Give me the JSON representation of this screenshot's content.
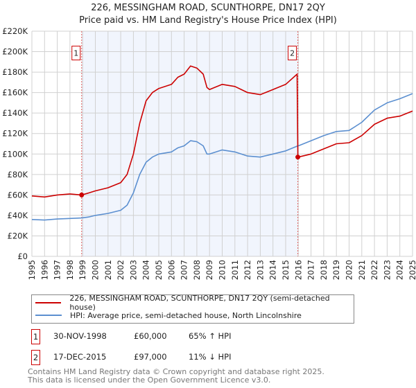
{
  "chart_data": {
    "type": "line",
    "title": "226, MESSINGHAM ROAD, SCUNTHORPE, DN17 2QY",
    "subtitle": "Price paid vs. HM Land Registry's House Price Index (HPI)",
    "xlim": [
      1995,
      2025
    ],
    "ylim": [
      0,
      220000
    ],
    "x_ticks": [
      "1995",
      "1996",
      "1997",
      "1998",
      "1999",
      "2000",
      "2001",
      "2002",
      "2003",
      "2004",
      "2005",
      "2006",
      "2007",
      "2008",
      "2009",
      "2010",
      "2011",
      "2012",
      "2013",
      "2014",
      "2015",
      "2016",
      "2017",
      "2018",
      "2019",
      "2020",
      "2021",
      "2022",
      "2023",
      "2024",
      "2025"
    ],
    "y_ticks": [
      "£0",
      "£20K",
      "£40K",
      "£60K",
      "£80K",
      "£100K",
      "£120K",
      "£140K",
      "£160K",
      "£180K",
      "£200K",
      "£220K"
    ],
    "grid": true,
    "series": [
      {
        "name": "226, MESSINGHAM ROAD, SCUNTHORPE, DN17 2QY (semi-detached house)",
        "color": "#cc0000",
        "x": [
          1995,
          1996,
          1997,
          1998,
          1998.92,
          1999.5,
          2000,
          2001,
          2002,
          2002.5,
          2003,
          2003.5,
          2004,
          2004.5,
          2005,
          2006,
          2006.5,
          2007,
          2007.5,
          2008,
          2008.5,
          2008.8,
          2009,
          2010,
          2011,
          2012,
          2013,
          2014,
          2015,
          2015.9,
          2015.96,
          2016,
          2017,
          2018,
          2019,
          2020,
          2021,
          2022,
          2023,
          2024,
          2025
        ],
        "y": [
          59000,
          58000,
          60000,
          61000,
          60000,
          62000,
          64000,
          67000,
          72000,
          80000,
          100000,
          130000,
          152000,
          160000,
          164000,
          168000,
          175000,
          178000,
          186000,
          184000,
          178000,
          165000,
          163000,
          168000,
          166000,
          160000,
          158000,
          163000,
          168000,
          178000,
          97000,
          97000,
          100000,
          105000,
          110000,
          111000,
          118000,
          129000,
          135000,
          137000,
          142000
        ]
      },
      {
        "name": "HPI: Average price, semi-detached house, North Lincolnshire",
        "color": "#5b8fd0",
        "x": [
          1995,
          1996,
          1997,
          1998,
          1998.92,
          1999.5,
          2000,
          2001,
          2002,
          2002.5,
          2003,
          2003.5,
          2004,
          2004.5,
          2005,
          2006,
          2006.5,
          2007,
          2007.5,
          2008,
          2008.5,
          2008.8,
          2009,
          2010,
          2011,
          2012,
          2013,
          2014,
          2015,
          2015.96,
          2016,
          2017,
          2018,
          2019,
          2020,
          2021,
          2022,
          2023,
          2024,
          2025
        ],
        "y": [
          36000,
          35500,
          36500,
          37000,
          37500,
          38500,
          40000,
          42000,
          45000,
          50000,
          62000,
          80000,
          92000,
          97000,
          100000,
          102000,
          106000,
          108000,
          113000,
          112000,
          108000,
          100000,
          100000,
          104000,
          102000,
          98000,
          97000,
          100000,
          103000,
          108000,
          108000,
          113000,
          118000,
          122000,
          123000,
          131000,
          143000,
          150000,
          154000,
          159000
        ]
      }
    ],
    "sales": [
      {
        "label": "1",
        "date": "30-NOV-1998",
        "x": 1998.92,
        "price": "£60,000",
        "value": 60000,
        "hpi": "65% ↑ HPI"
      },
      {
        "label": "2",
        "date": "17-DEC-2015",
        "x": 2015.96,
        "price": "£97,000",
        "value": 97000,
        "hpi": "11% ↓ HPI"
      }
    ],
    "legend_placement": "bottom"
  },
  "footer": {
    "line1": "Contains HM Land Registry data © Crown copyright and database right 2025.",
    "line2": "This data is licensed under the Open Government Licence v3.0."
  }
}
